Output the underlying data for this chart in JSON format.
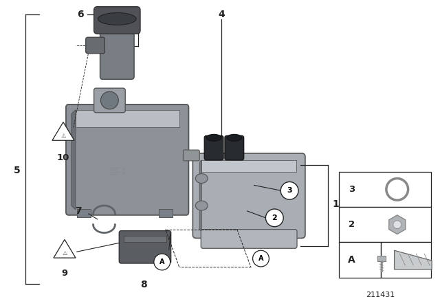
{
  "bg_color": "#ffffff",
  "part_number": "211431",
  "line_color": "#222222",
  "tank_color": "#8c9298",
  "tank_dark": "#6a7078",
  "tank_light": "#b8bec4",
  "sensor_dark": "#505258",
  "sensor_mid": "#787e84",
  "cyl_color": "#a8aeb4",
  "cyl_dark": "#787e84",
  "cap_dark": "#282c30",
  "clip_color": "#606468",
  "part8_color": "#5a5e62",
  "legend_items": {
    "3_label": "3",
    "2_label": "2",
    "A_label": "A"
  }
}
